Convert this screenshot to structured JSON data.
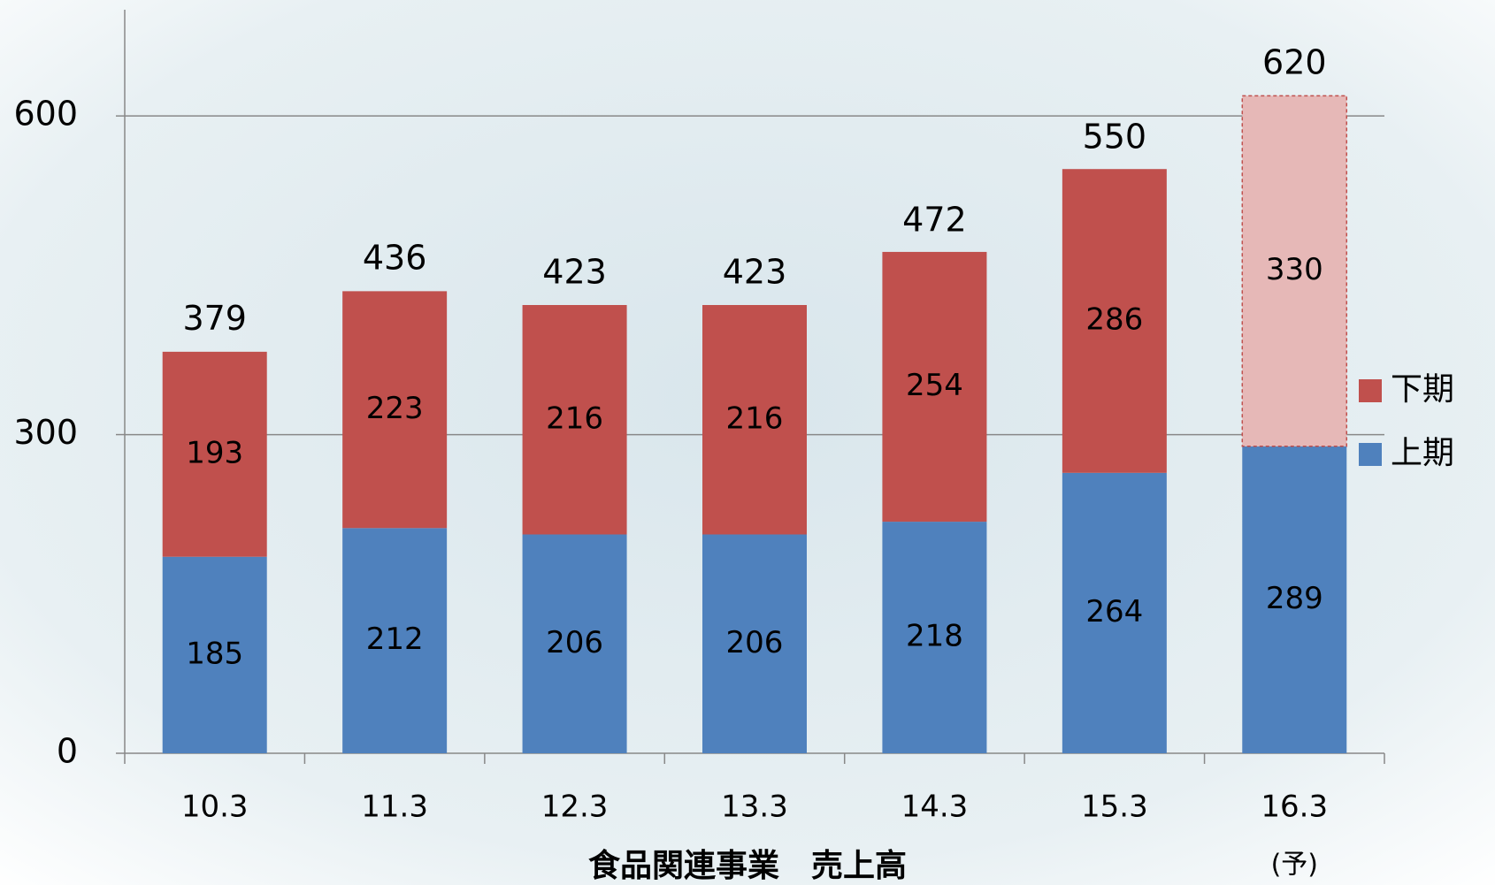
{
  "chart_data": {
    "type": "stacked_bar",
    "title": "食品関連事業　売上高",
    "categories": [
      "10.3",
      "11.3",
      "12.3",
      "13.3",
      "14.3",
      "15.3",
      "16.3"
    ],
    "category_notes": [
      null,
      null,
      null,
      null,
      null,
      null,
      "(予)"
    ],
    "series": [
      {
        "name": "上期",
        "color": "#4f81bd",
        "values": [
          185,
          212,
          206,
          206,
          218,
          264,
          289
        ]
      },
      {
        "name": "下期",
        "color": "#c0504d",
        "values": [
          193,
          223,
          216,
          216,
          254,
          286,
          330
        ],
        "colors": [
          "#c0504d",
          "#c0504d",
          "#c0504d",
          "#c0504d",
          "#c0504d",
          "#c0504d",
          "#e6b8b7"
        ]
      }
    ],
    "totals": [
      379,
      436,
      423,
      423,
      472,
      550,
      620
    ],
    "ylim": [
      0,
      700
    ],
    "yticks": [
      0,
      300,
      600
    ],
    "grid": true,
    "legend": "right"
  }
}
